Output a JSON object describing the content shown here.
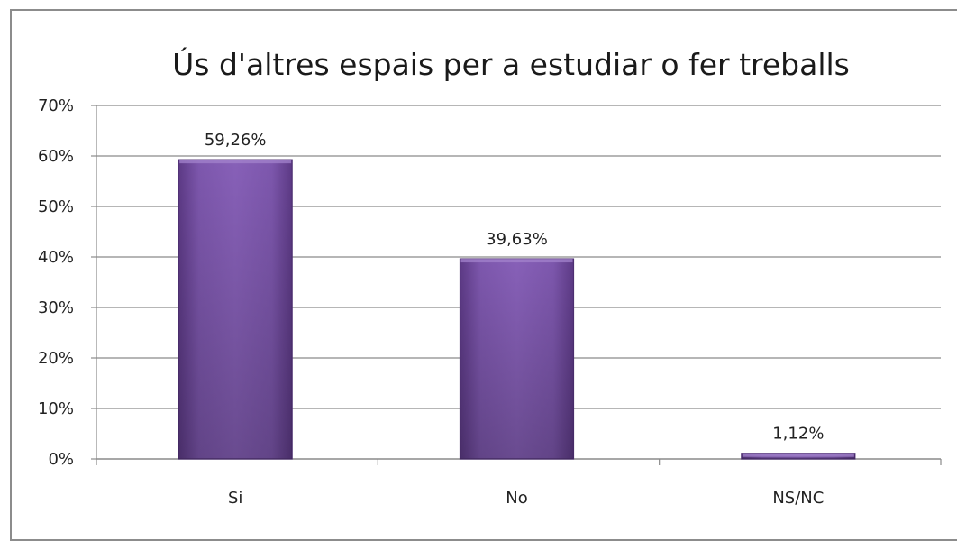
{
  "chart_data": {
    "type": "bar",
    "title": "Ús d'altres espais per a estudiar o fer treballs",
    "categories": [
      "Si",
      "No",
      "NS/NC"
    ],
    "values": [
      59.26,
      39.63,
      1.12
    ],
    "data_labels": [
      "59,26%",
      "39,63%",
      "1,12%"
    ],
    "ylim": [
      0,
      70
    ],
    "yticks": [
      0,
      10,
      20,
      30,
      40,
      50,
      60,
      70
    ],
    "ytick_labels": [
      "0%",
      "10%",
      "20%",
      "30%",
      "40%",
      "50%",
      "60%",
      "70%"
    ],
    "xlabel": "",
    "ylabel": "",
    "grid": true,
    "legend": false,
    "bar_color": "#7b55a8"
  }
}
